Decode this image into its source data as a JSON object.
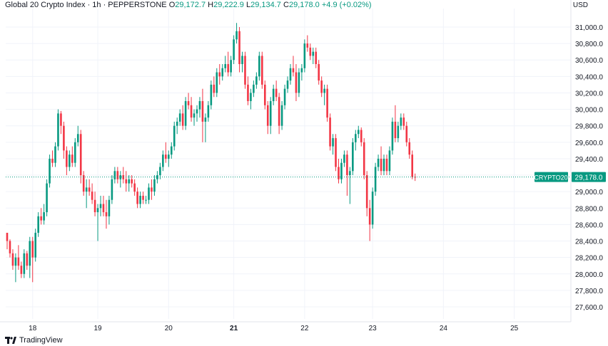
{
  "header": {
    "title": "Global 20 Crypto Index · 1h · PEPPERSTONE",
    "o_label": "O",
    "o_value": "29,172.7",
    "h_label": "H",
    "h_value": "29,222.9",
    "l_label": "L",
    "l_value": "29,134.7",
    "c_label": "C",
    "c_value": "29,178.0",
    "change": "+4.9 (+0.02%)"
  },
  "currency": "USD",
  "brand": "TradingView",
  "price_tag": {
    "symbol": "CRYPTO20",
    "value": "29,178.0"
  },
  "colors": {
    "up": "#089981",
    "down": "#F23645",
    "grid": "#F0F3FA",
    "text": "#131722",
    "last_line": "#089981"
  },
  "chart_data": {
    "type": "candlestick",
    "y_ticks": [
      "31,000.0",
      "30,800.0",
      "30,600.0",
      "30,400.0",
      "30,200.0",
      "30,000.0",
      "29,800.0",
      "29,600.0",
      "29,400.0",
      "29,200.0",
      "29,000.0",
      "28,800.0",
      "28,600.0",
      "28,400.0",
      "28,200.0",
      "28,000.0",
      "27,800.0",
      "27,600.0"
    ],
    "y_tick_values": [
      31000,
      30800,
      30600,
      30400,
      30200,
      30000,
      29800,
      29600,
      29400,
      29200,
      29000,
      28800,
      28600,
      28400,
      28200,
      28000,
      27800,
      27600
    ],
    "x_ticks": [
      {
        "label": "18",
        "index": 9,
        "bold": false
      },
      {
        "label": "19",
        "index": 32,
        "bold": false
      },
      {
        "label": "20",
        "index": 57,
        "bold": false
      },
      {
        "label": "21",
        "index": 80,
        "bold": true
      },
      {
        "label": "22",
        "index": 105,
        "bold": false
      },
      {
        "label": "23",
        "index": 129,
        "bold": false
      },
      {
        "label": "24",
        "index": 154,
        "bold": false
      },
      {
        "label": "25",
        "index": 179,
        "bold": false
      }
    ],
    "ylim": [
      27600,
      31000
    ],
    "last_price": 29178.0,
    "candles": [
      [
        28500,
        28500,
        28300,
        28400
      ],
      [
        28400,
        28420,
        28200,
        28250
      ],
      [
        28250,
        28300,
        28050,
        28100
      ],
      [
        28100,
        28250,
        27900,
        28200
      ],
      [
        28200,
        28350,
        28050,
        28100
      ],
      [
        28100,
        28150,
        27950,
        28000
      ],
      [
        28000,
        28300,
        27950,
        28250
      ],
      [
        28250,
        28280,
        28050,
        28100
      ],
      [
        28100,
        28450,
        27950,
        28400
      ],
      [
        28400,
        28450,
        27900,
        28200
      ],
      [
        28200,
        28550,
        28150,
        28500
      ],
      [
        28500,
        28750,
        28450,
        28700
      ],
      [
        28700,
        28800,
        28600,
        28650
      ],
      [
        28650,
        28850,
        28600,
        28750
      ],
      [
        28750,
        29150,
        28700,
        29100
      ],
      [
        29100,
        29450,
        29050,
        29400
      ],
      [
        29400,
        29500,
        29300,
        29350
      ],
      [
        29350,
        29600,
        29300,
        29550
      ],
      [
        29550,
        30000,
        29500,
        29950
      ],
      [
        29950,
        29980,
        29700,
        29800
      ],
      [
        29800,
        29850,
        29400,
        29500
      ],
      [
        29500,
        29550,
        29200,
        29300
      ],
      [
        29300,
        29500,
        29250,
        29450
      ],
      [
        29450,
        29550,
        29300,
        29350
      ],
      [
        29350,
        29650,
        29300,
        29600
      ],
      [
        29600,
        29800,
        29550,
        29700
      ],
      [
        29700,
        29750,
        29100,
        29200
      ],
      [
        29200,
        29250,
        28950,
        29000
      ],
      [
        29000,
        29150,
        28800,
        29050
      ],
      [
        29050,
        29150,
        28950,
        29000
      ],
      [
        29000,
        29100,
        28850,
        28900
      ],
      [
        28900,
        29000,
        28700,
        28750
      ],
      [
        28750,
        28850,
        28400,
        28800
      ],
      [
        28800,
        28950,
        28700,
        28850
      ],
      [
        28850,
        28950,
        28700,
        28750
      ],
      [
        28750,
        28900,
        28550,
        28700
      ],
      [
        28700,
        28950,
        28600,
        28900
      ],
      [
        28900,
        29200,
        28850,
        29150
      ],
      [
        29150,
        29300,
        29100,
        29250
      ],
      [
        29250,
        29300,
        29100,
        29150
      ],
      [
        29150,
        29250,
        29050,
        29200
      ],
      [
        29200,
        29300,
        29100,
        29150
      ],
      [
        29150,
        29250,
        29000,
        29100
      ],
      [
        29100,
        29200,
        29000,
        29150
      ],
      [
        29150,
        29200,
        29050,
        29100
      ],
      [
        29100,
        29150,
        28950,
        29000
      ],
      [
        29000,
        29050,
        28800,
        28850
      ],
      [
        28850,
        29000,
        28800,
        28950
      ],
      [
        28950,
        29000,
        28850,
        28900
      ],
      [
        28900,
        28950,
        28850,
        28900
      ],
      [
        28900,
        29100,
        28850,
        29050
      ],
      [
        29050,
        29150,
        28900,
        29000
      ],
      [
        29000,
        29200,
        28950,
        29150
      ],
      [
        29150,
        29250,
        29100,
        29200
      ],
      [
        29200,
        29350,
        29150,
        29300
      ],
      [
        29300,
        29500,
        29250,
        29450
      ],
      [
        29450,
        29600,
        29350,
        29400
      ],
      [
        29400,
        29500,
        29300,
        29450
      ],
      [
        29450,
        29600,
        29400,
        29550
      ],
      [
        29550,
        29850,
        29500,
        29800
      ],
      [
        29800,
        29900,
        29700,
        29850
      ],
      [
        29850,
        30000,
        29800,
        29950
      ],
      [
        29950,
        30050,
        29750,
        29800
      ],
      [
        29800,
        30150,
        29750,
        30100
      ],
      [
        30100,
        30200,
        30000,
        30050
      ],
      [
        30050,
        30150,
        29850,
        29900
      ],
      [
        29900,
        30000,
        29800,
        29950
      ],
      [
        29950,
        30050,
        29850,
        30000
      ],
      [
        30000,
        30150,
        29900,
        30100
      ],
      [
        30100,
        30250,
        29600,
        29850
      ],
      [
        29850,
        29950,
        29600,
        29900
      ],
      [
        29900,
        30100,
        29850,
        30050
      ],
      [
        30050,
        30350,
        30000,
        30300
      ],
      [
        30300,
        30400,
        30150,
        30200
      ],
      [
        30200,
        30500,
        30150,
        30450
      ],
      [
        30450,
        30550,
        30300,
        30400
      ],
      [
        30400,
        30550,
        30350,
        30500
      ],
      [
        30500,
        30650,
        30450,
        30550
      ],
      [
        30550,
        30700,
        30400,
        30450
      ],
      [
        30450,
        30650,
        30400,
        30600
      ],
      [
        30600,
        30900,
        30550,
        30850
      ],
      [
        30850,
        31050,
        30800,
        30950
      ],
      [
        30950,
        31000,
        30450,
        30550
      ],
      [
        30550,
        30700,
        30450,
        30650
      ],
      [
        30650,
        30700,
        30250,
        30300
      ],
      [
        30300,
        30400,
        30050,
        30100
      ],
      [
        30100,
        30250,
        30000,
        30200
      ],
      [
        30200,
        30350,
        30150,
        30300
      ],
      [
        30300,
        30450,
        30250,
        30400
      ],
      [
        30400,
        30700,
        30350,
        30650
      ],
      [
        30650,
        30700,
        30250,
        30300
      ],
      [
        30300,
        30350,
        30000,
        30050
      ],
      [
        30050,
        30100,
        29700,
        29800
      ],
      [
        29800,
        30150,
        29700,
        30100
      ],
      [
        30100,
        30300,
        30050,
        30250
      ],
      [
        30250,
        30350,
        30100,
        30150
      ],
      [
        30150,
        30200,
        29700,
        29800
      ],
      [
        29800,
        30100,
        29750,
        30050
      ],
      [
        30050,
        30300,
        30000,
        30250
      ],
      [
        30250,
        30400,
        30200,
        30350
      ],
      [
        30350,
        30550,
        30300,
        30500
      ],
      [
        30500,
        30650,
        30400,
        30450
      ],
      [
        30450,
        30550,
        30100,
        30200
      ],
      [
        30200,
        30500,
        30150,
        30450
      ],
      [
        30450,
        30550,
        30350,
        30500
      ],
      [
        30500,
        30850,
        30450,
        30800
      ],
      [
        30800,
        30900,
        30700,
        30750
      ],
      [
        30750,
        30800,
        30600,
        30650
      ],
      [
        30650,
        30750,
        30550,
        30700
      ],
      [
        30700,
        30750,
        30500,
        30550
      ],
      [
        30550,
        30600,
        30300,
        30350
      ],
      [
        30350,
        30400,
        30150,
        30200
      ],
      [
        30200,
        30300,
        30050,
        30250
      ],
      [
        30250,
        30300,
        29850,
        29900
      ],
      [
        29900,
        29950,
        29500,
        29550
      ],
      [
        29550,
        29700,
        29450,
        29650
      ],
      [
        29650,
        29700,
        29250,
        29300
      ],
      [
        29300,
        29400,
        29100,
        29150
      ],
      [
        29150,
        29400,
        29100,
        29350
      ],
      [
        29350,
        29500,
        29300,
        29450
      ],
      [
        29450,
        29500,
        28950,
        29200
      ],
      [
        29200,
        29300,
        28850,
        29250
      ],
      [
        29250,
        29650,
        29200,
        29600
      ],
      [
        29600,
        29750,
        29500,
        29700
      ],
      [
        29700,
        29800,
        29650,
        29750
      ],
      [
        29750,
        29780,
        29550,
        29600
      ],
      [
        29600,
        29650,
        29150,
        29200
      ],
      [
        29200,
        29250,
        28700,
        28800
      ],
      [
        28800,
        28900,
        28400,
        28600
      ],
      [
        28600,
        29050,
        28550,
        29000
      ],
      [
        29000,
        29350,
        28950,
        29300
      ],
      [
        29300,
        29450,
        29250,
        29400
      ],
      [
        29400,
        29550,
        29200,
        29250
      ],
      [
        29250,
        29450,
        29200,
        29400
      ],
      [
        29400,
        29450,
        29200,
        29250
      ],
      [
        29250,
        29550,
        29200,
        29500
      ],
      [
        29500,
        29900,
        29450,
        29850
      ],
      [
        29850,
        30050,
        29600,
        29650
      ],
      [
        29650,
        29850,
        29600,
        29800
      ],
      [
        29800,
        29950,
        29750,
        29900
      ],
      [
        29900,
        29950,
        29750,
        29800
      ],
      [
        29800,
        29850,
        29550,
        29600
      ],
      [
        29600,
        29650,
        29400,
        29450
      ],
      [
        29450,
        29500,
        29150,
        29180
      ],
      [
        29180,
        29220,
        29130,
        29178
      ]
    ]
  }
}
